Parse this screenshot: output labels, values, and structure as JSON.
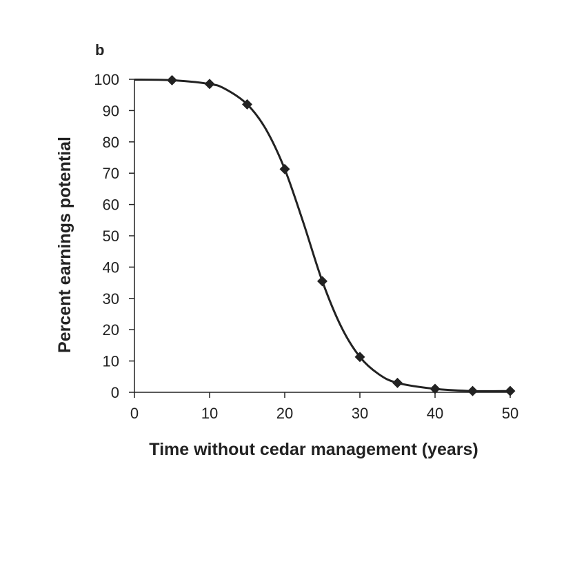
{
  "chart_data": {
    "type": "line",
    "panel_label": "b",
    "title": "",
    "xlabel": "Time without cedar management (years)",
    "ylabel": "Percent earnings potential",
    "xlim": [
      0,
      50
    ],
    "ylim": [
      0,
      100
    ],
    "x_ticks": [
      0,
      10,
      20,
      30,
      40,
      50
    ],
    "y_ticks": [
      0,
      10,
      20,
      30,
      40,
      50,
      60,
      70,
      80,
      90,
      100
    ],
    "grid": false,
    "legend": "none",
    "series": [
      {
        "x": [
          5,
          10,
          15,
          20,
          25,
          30,
          35,
          40,
          45,
          50
        ],
        "y": [
          99.7,
          98.5,
          92,
          71.3,
          35.5,
          11.3,
          3,
          1.1,
          0.4,
          0.4
        ],
        "marker": "diamond",
        "color": "#222222"
      }
    ],
    "curve": {
      "x": [
        0,
        5,
        10,
        12,
        15,
        17.5,
        20,
        22.5,
        25,
        27.5,
        30,
        32.5,
        35,
        40,
        45,
        50
      ],
      "y": [
        99.9,
        99.7,
        98.5,
        97,
        92,
        84,
        71.3,
        54,
        35.5,
        21,
        11.3,
        5.8,
        3,
        1.1,
        0.4,
        0.4
      ]
    }
  }
}
